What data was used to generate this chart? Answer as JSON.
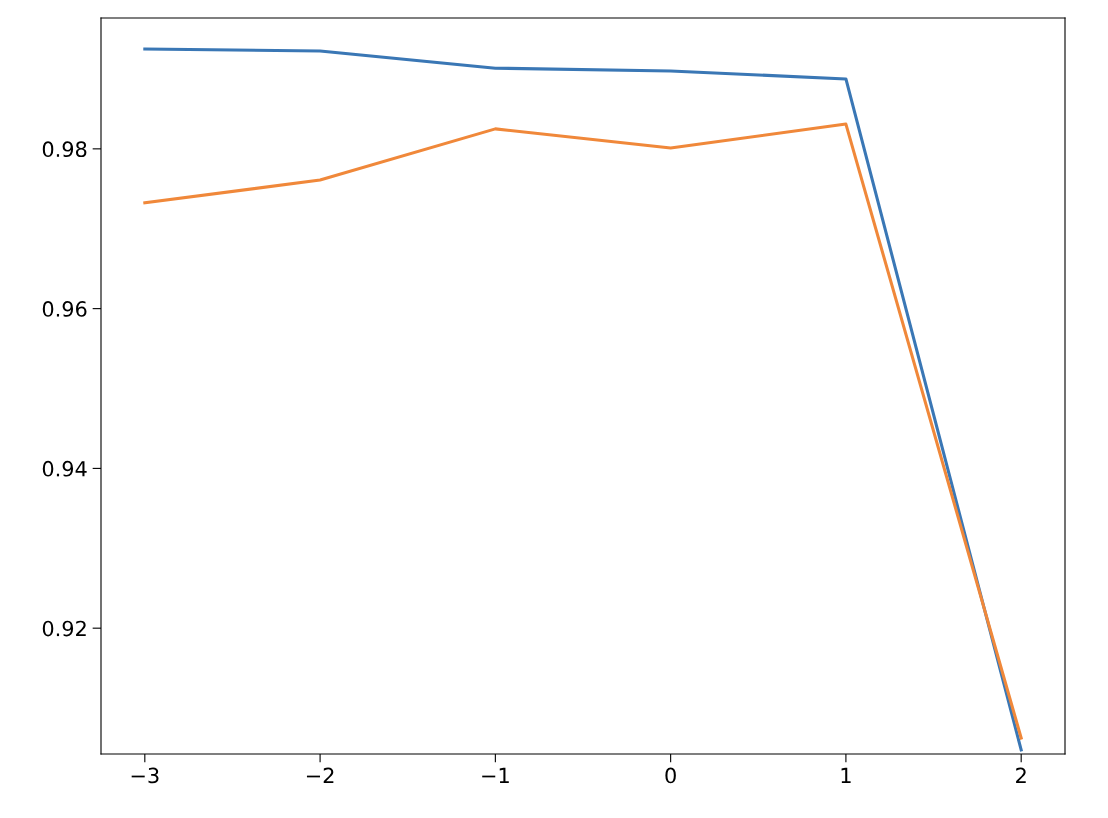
{
  "chart_data": {
    "type": "line",
    "x": [
      -3,
      -2,
      -1,
      0,
      1,
      2
    ],
    "series": [
      {
        "color": "#3a77b5",
        "values": [
          0.9925,
          0.99225,
          0.9901,
          0.98975,
          0.98875,
          0.90475
        ]
      },
      {
        "color": "#f0883a",
        "values": [
          0.97325,
          0.9761,
          0.9825,
          0.9801,
          0.9831,
          0.90625
        ]
      }
    ],
    "xlim": [
      -3.25,
      2.25
    ],
    "xticks": [
      {
        "value": -3,
        "label": "−3"
      },
      {
        "value": -2,
        "label": "−2"
      },
      {
        "value": -1,
        "label": "−1"
      },
      0,
      1,
      2
    ],
    "ylim": [
      0.90425,
      0.99638
    ],
    "yticks": [
      0.92,
      0.94,
      0.96,
      0.98
    ],
    "grid": false,
    "legend": false,
    "marker": "none",
    "line_style": "solid"
  }
}
